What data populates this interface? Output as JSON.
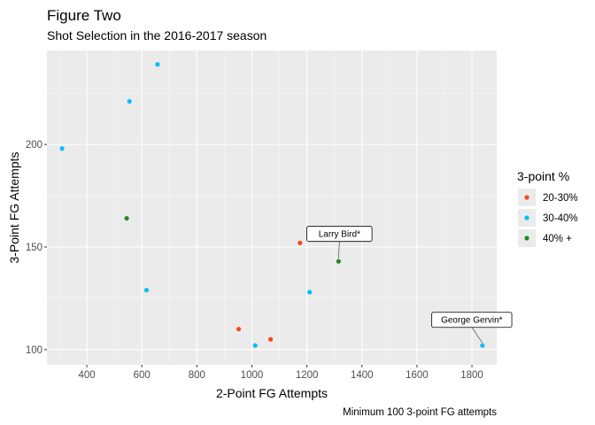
{
  "chart_data": {
    "type": "scatter",
    "title": "Figure Two",
    "subtitle": "Shot Selection in the 2016-2017 season",
    "xlabel": "2-Point FG Attempts",
    "ylabel": "3-Point FG Attempts",
    "caption": "Minimum 100 3-point FG attempts",
    "xlim": [
      255,
      1890
    ],
    "ylim": [
      92.6,
      245.8
    ],
    "xticks": [
      400,
      600,
      800,
      1000,
      1200,
      1400,
      1600,
      1800
    ],
    "yticks": [
      100,
      150,
      200
    ],
    "grid": true,
    "legend": {
      "title": "3-point %",
      "position": "right",
      "entries": [
        {
          "name": "20-30%",
          "color": "#F8481C"
        },
        {
          "name": "30-40%",
          "color": "#00BFFF"
        },
        {
          "name": "40% +",
          "color": "#228B22"
        }
      ]
    },
    "points": [
      {
        "x": 657,
        "y": 239,
        "group": "30-40%"
      },
      {
        "x": 555,
        "y": 221,
        "group": "30-40%"
      },
      {
        "x": 310,
        "y": 198,
        "group": "30-40%"
      },
      {
        "x": 545,
        "y": 164,
        "group": "40% +"
      },
      {
        "x": 1175,
        "y": 152,
        "group": "20-30%"
      },
      {
        "x": 1315,
        "y": 143,
        "group": "40% +"
      },
      {
        "x": 617,
        "y": 129,
        "group": "30-40%"
      },
      {
        "x": 1210,
        "y": 128,
        "group": "30-40%"
      },
      {
        "x": 952,
        "y": 110,
        "group": "20-30%"
      },
      {
        "x": 1068,
        "y": 105,
        "group": "20-30%"
      },
      {
        "x": 1012,
        "y": 102,
        "group": "30-40%"
      },
      {
        "x": 1838,
        "y": 102,
        "group": "30-40%"
      }
    ],
    "annotations": [
      {
        "text": "Larry Bird*",
        "x": 1315,
        "y": 143
      },
      {
        "text": "George Gervin*",
        "x": 1838,
        "y": 102
      }
    ]
  }
}
